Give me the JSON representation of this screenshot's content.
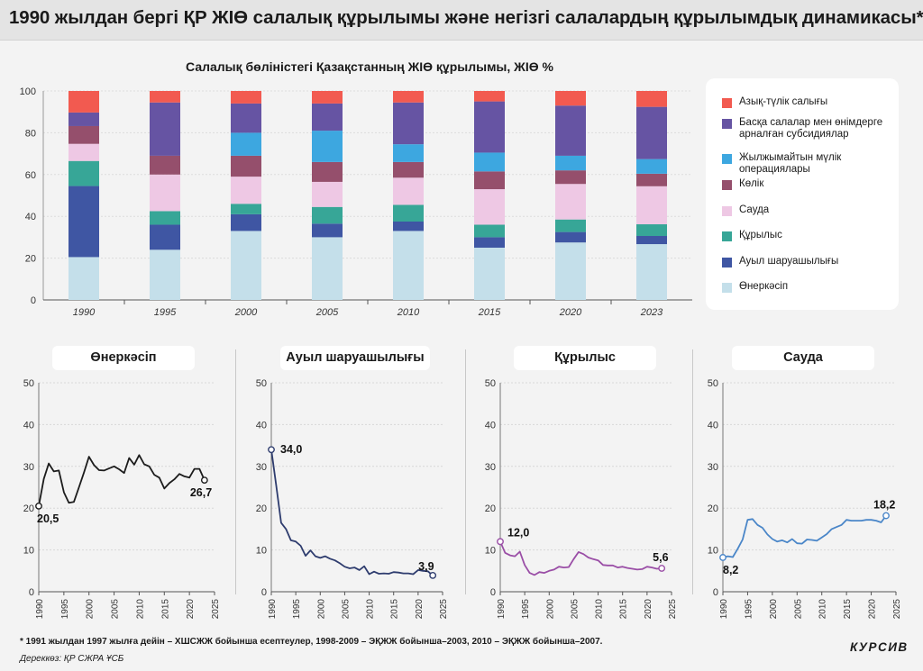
{
  "header": {
    "title": "1990 жылдан бергі ҚР ЖІӨ салалық құрылымы және негізгі салалардың құрылымдық динамикасы*"
  },
  "footnote": "* 1991 жылдан 1997 жылға дейін – ХШСЖЖ бойынша есептеулер, 1998-2009 – ЭҚЖЖ бойынша–2003, 2010 – ЭҚЖЖ бойынша–2007.",
  "source": "Дереккөз: ҚР СЖРА ҰСБ",
  "logo": "КУРСИВ",
  "chart_data": [
    {
      "type": "bar",
      "stacked": true,
      "title": "Салалық бөліністегі Қазақстанның ЖІӨ құрылымы, ЖІӨ %",
      "categories": [
        "1990",
        "1995",
        "2000",
        "2005",
        "2010",
        "2015",
        "2020",
        "2023"
      ],
      "ylim": [
        0,
        100
      ],
      "yticks": [
        0,
        20,
        40,
        60,
        80,
        100
      ],
      "legend_position": "right",
      "series": [
        {
          "name": "Өнеркәсіп",
          "color": "#c4dfea",
          "values": [
            20.5,
            24,
            33,
            30,
            33,
            25,
            27.5,
            26.7
          ]
        },
        {
          "name": "Ауыл шаруашылығы",
          "color": "#3f56a3",
          "values": [
            34.0,
            12,
            8,
            6.5,
            4.5,
            5,
            5,
            3.9
          ]
        },
        {
          "name": "Құрылыс",
          "color": "#37a697",
          "values": [
            12.0,
            6.5,
            5,
            8,
            8,
            6,
            6,
            5.6
          ]
        },
        {
          "name": "Сауда",
          "color": "#eec8e4",
          "values": [
            8.2,
            17.5,
            13,
            12,
            13,
            17,
            17,
            18.2
          ]
        },
        {
          "name": "Көлік",
          "color": "#954f6c",
          "values": [
            8.5,
            9,
            10,
            9.5,
            7.5,
            8.5,
            6.5,
            6
          ]
        },
        {
          "name": "Жылжымайтын мүлік операциялары",
          "color": "#3da7e0",
          "values": [
            0,
            0,
            11,
            15,
            8.5,
            9,
            7,
            7
          ]
        },
        {
          "name": "Басқа салалар мен өнімдерге арналған субсидиялар",
          "color": "#6654a3",
          "values": [
            6.5,
            25.5,
            14,
            13,
            20,
            24.5,
            24,
            25
          ]
        },
        {
          "name": "Азық-түлік салығы",
          "color": "#f25a50",
          "values": [
            10.3,
            5.5,
            6,
            6,
            5.5,
            5,
            7,
            7.6
          ]
        }
      ]
    },
    {
      "type": "line",
      "title": "Өнеркәсіп",
      "color": "#1c1c1c",
      "x": [
        1990,
        1991,
        1992,
        1993,
        1994,
        1995,
        1996,
        1997,
        1998,
        1999,
        2000,
        2001,
        2002,
        2003,
        2004,
        2005,
        2006,
        2007,
        2008,
        2009,
        2010,
        2011,
        2012,
        2013,
        2014,
        2015,
        2016,
        2017,
        2018,
        2019,
        2020,
        2021,
        2022,
        2023
      ],
      "y": [
        20.5,
        27,
        30.7,
        28.8,
        29,
        23.8,
        21.3,
        21.5,
        25,
        28.5,
        32.3,
        30.3,
        29.1,
        29,
        29.5,
        30,
        29.3,
        28.4,
        32,
        30.4,
        32.7,
        30.5,
        30,
        28,
        27.3,
        24.7,
        26,
        26.9,
        28.2,
        27.6,
        27.3,
        29.4,
        29.4,
        26.7
      ],
      "xticks": [
        1990,
        1995,
        2000,
        2005,
        2010,
        2015,
        2020,
        2025
      ],
      "yticks": [
        0,
        10,
        20,
        30,
        40,
        50
      ],
      "xlim": [
        1990,
        2025
      ],
      "ylim": [
        0,
        50
      ],
      "labels": [
        {
          "x": 1990,
          "y": 20.5,
          "text": "20,5"
        },
        {
          "x": 2023,
          "y": 26.7,
          "text": "26,7"
        }
      ]
    },
    {
      "type": "line",
      "title": "Ауыл шаруашылығы",
      "color": "#2e3c6e",
      "x": [
        1990,
        1991,
        1992,
        1993,
        1994,
        1995,
        1996,
        1997,
        1998,
        1999,
        2000,
        2001,
        2002,
        2003,
        2004,
        2005,
        2006,
        2007,
        2008,
        2009,
        2010,
        2011,
        2012,
        2013,
        2014,
        2015,
        2016,
        2017,
        2018,
        2019,
        2020,
        2021,
        2022,
        2023
      ],
      "y": [
        34.0,
        25.5,
        16.5,
        15,
        12.3,
        12,
        11,
        8.6,
        9.9,
        8.5,
        8.1,
        8.5,
        7.9,
        7.5,
        6.8,
        6,
        5.6,
        5.8,
        5.2,
        6.1,
        4.2,
        4.8,
        4.3,
        4.4,
        4.3,
        4.7,
        4.6,
        4.4,
        4.4,
        4.2,
        5.2,
        5,
        4.9,
        3.9
      ],
      "xticks": [
        1990,
        1995,
        2000,
        2005,
        2010,
        2015,
        2020,
        2025
      ],
      "yticks": [
        0,
        10,
        20,
        30,
        40,
        50
      ],
      "xlim": [
        1990,
        2025
      ],
      "ylim": [
        0,
        50
      ],
      "labels": [
        {
          "x": 1990,
          "y": 34.0,
          "text": "34,0"
        },
        {
          "x": 2023,
          "y": 3.9,
          "text": "3,9"
        }
      ]
    },
    {
      "type": "line",
      "title": "Құрылыс",
      "color": "#9a4ea6",
      "x": [
        1990,
        1991,
        1992,
        1993,
        1994,
        1995,
        1996,
        1997,
        1998,
        1999,
        2000,
        2001,
        2002,
        2003,
        2004,
        2005,
        2006,
        2007,
        2008,
        2009,
        2010,
        2011,
        2012,
        2013,
        2014,
        2015,
        2016,
        2017,
        2018,
        2019,
        2020,
        2021,
        2022,
        2023
      ],
      "y": [
        12.0,
        9.3,
        8.7,
        8.5,
        9.6,
        6.4,
        4.5,
        4,
        4.7,
        4.5,
        5,
        5.3,
        6,
        5.8,
        5.9,
        7.8,
        9.5,
        9,
        8.2,
        7.8,
        7.5,
        6.4,
        6.3,
        6.3,
        5.8,
        6,
        5.7,
        5.5,
        5.3,
        5.4,
        6,
        5.8,
        5.5,
        5.6
      ],
      "xticks": [
        1990,
        1995,
        2000,
        2005,
        2010,
        2015,
        2020,
        2025
      ],
      "yticks": [
        0,
        10,
        20,
        30,
        40,
        50
      ],
      "xlim": [
        1990,
        2025
      ],
      "ylim": [
        0,
        50
      ],
      "labels": [
        {
          "x": 1990,
          "y": 12.0,
          "text": "12,0"
        },
        {
          "x": 2023,
          "y": 5.6,
          "text": "5,6"
        }
      ]
    },
    {
      "type": "line",
      "title": "Сауда",
      "color": "#4a86c8",
      "x": [
        1990,
        1991,
        1992,
        1993,
        1994,
        1995,
        1996,
        1997,
        1998,
        1999,
        2000,
        2001,
        2002,
        2003,
        2004,
        2005,
        2006,
        2007,
        2008,
        2009,
        2010,
        2011,
        2012,
        2013,
        2014,
        2015,
        2016,
        2017,
        2018,
        2019,
        2020,
        2021,
        2022,
        2023
      ],
      "y": [
        8.2,
        8.5,
        8.3,
        10.3,
        12.5,
        17.2,
        17.4,
        16,
        15.3,
        13.7,
        12.6,
        12,
        12.3,
        11.8,
        12.6,
        11.6,
        11.5,
        12.5,
        12.4,
        12.2,
        13,
        13.8,
        15,
        15.5,
        16,
        17.2,
        17,
        17,
        17,
        17.2,
        17.2,
        17,
        16.6,
        18.2
      ],
      "xticks": [
        1990,
        1995,
        2000,
        2005,
        2010,
        2015,
        2020,
        2025
      ],
      "yticks": [
        0,
        10,
        20,
        30,
        40,
        50
      ],
      "xlim": [
        1990,
        2025
      ],
      "ylim": [
        0,
        50
      ],
      "labels": [
        {
          "x": 1990,
          "y": 8.2,
          "text": "8,2"
        },
        {
          "x": 2023,
          "y": 18.2,
          "text": "18,2"
        }
      ]
    }
  ]
}
